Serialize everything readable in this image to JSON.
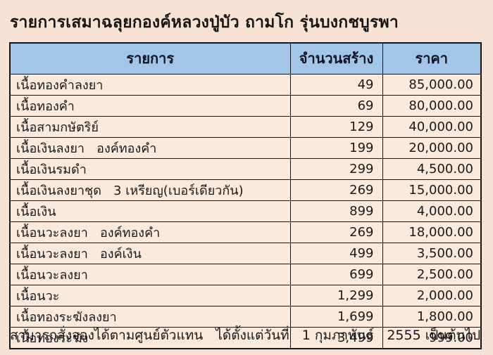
{
  "title": "รายการเสมาฉลุยกองค์หลวงปู่บัว ถามโก รุ่นบงกชบูรพา",
  "footer": "สามารถสั่งจองได้ตามศูนย์ตัวแทน   ได้ตั้งแต่วันที่   1 กุมภาพันธ์   2555 เป็นต้นไป",
  "colors": {
    "page_background": "#f7e3d5",
    "cell_background": "#f9eadd",
    "header_background": "#a2c6e7",
    "border": "#161616",
    "text": "#1a1a1a"
  },
  "table": {
    "columns": [
      "รายการ",
      "จำนวนสร้าง",
      "ราคา"
    ],
    "rows": [
      {
        "item": "เนื้อทองคำลงยา",
        "qty": "49",
        "price": "85,000.00"
      },
      {
        "item": "เนื้อทองคำ",
        "qty": "69",
        "price": "80,000.00"
      },
      {
        "item": "เนื้อสามกษัตริย์",
        "qty": "129",
        "price": "40,000.00"
      },
      {
        "item": "เนื้อเงินลงยา   องค์ทองคำ",
        "qty": "199",
        "price": "20,000.00"
      },
      {
        "item": "เนื้อเงินรมดำ",
        "qty": "299",
        "price": "4,500.00"
      },
      {
        "item": "เนื้อเงินลงยาชุด   3 เหรียญ(เบอร์เดียวกัน)",
        "qty": "269",
        "price": "15,000.00"
      },
      {
        "item": "เนื้อเงิน",
        "qty": "899",
        "price": "4,000.00"
      },
      {
        "item": "เนื้อนวะลงยา   องค์ทองคำ",
        "qty": "269",
        "price": "18,000.00"
      },
      {
        "item": "เนื้อนวะลงยา   องค์เงิน",
        "qty": "499",
        "price": "3,500.00"
      },
      {
        "item": "เนื้อนวะลงยา",
        "qty": "699",
        "price": "2,500.00"
      },
      {
        "item": "เนื้อนวะ",
        "qty": "1,299",
        "price": "2,000.00"
      },
      {
        "item": "เนื้อทองระฆังลงยา",
        "qty": "1,699",
        "price": "1,800.00"
      },
      {
        "item": "เนื้อทองระฆัง",
        "qty": "3,499",
        "price": "999.00"
      }
    ]
  }
}
